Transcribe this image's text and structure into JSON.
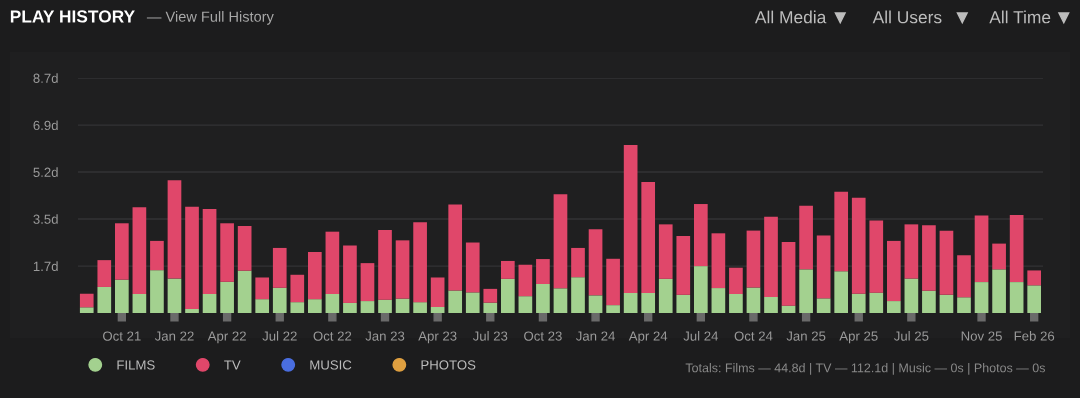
{
  "chart_data": {
    "type": "bar",
    "stacked": true,
    "title": "PLAY HISTORY",
    "subtitle": "— View Full History",
    "annotations": [
      "All Media",
      "All Users",
      "All Time",
      "Totals: Films — 44.8d | TV — 112.1d | Music — 0s | Photos — 0s"
    ],
    "categories": [
      null,
      null,
      "Oct 21",
      null,
      null,
      "Jan 22",
      null,
      null,
      "Apr 22",
      null,
      null,
      "Jul 22",
      null,
      null,
      "Oct 22",
      null,
      null,
      "Jan 23",
      null,
      null,
      "Apr 23",
      null,
      null,
      "Jul 23",
      null,
      null,
      "Oct 23",
      null,
      null,
      "Jan 24",
      null,
      null,
      "Apr 24",
      null,
      null,
      "Jul 24",
      null,
      null,
      "Oct 24",
      null,
      null,
      "Jan 25",
      null,
      null,
      "Apr 25",
      null,
      null,
      "Jul 25",
      null,
      null,
      null,
      "Nov 25",
      null,
      null,
      "Feb 26"
    ],
    "series": [
      {
        "name": "FILMS",
        "color": "#a3d18f",
        "values": [
          0.21,
          0.96,
          1.23,
          0.7,
          1.58,
          1.27,
          0.15,
          0.7,
          1.15,
          1.56,
          0.51,
          0.93,
          0.4,
          0.51,
          0.7,
          0.37,
          0.44,
          0.49,
          0.53,
          0.4,
          0.22,
          0.83,
          0.76,
          0.38,
          1.26,
          0.62,
          1.07,
          0.91,
          1.32,
          0.65,
          0.29,
          0.74,
          0.74,
          1.26,
          0.67,
          1.73,
          0.92,
          0.7,
          0.94,
          0.59,
          0.27,
          1.61,
          0.54,
          1.54,
          0.71,
          0.75,
          0.44,
          1.27,
          0.82,
          0.67,
          0.58,
          1.14,
          1.61,
          1.14,
          1.02
        ]
      },
      {
        "name": "TV",
        "color": "#e0476a",
        "values": [
          0.5,
          0.99,
          2.08,
          3.2,
          1.08,
          3.63,
          3.77,
          3.14,
          2.16,
          1.65,
          0.8,
          1.47,
          1.01,
          1.74,
          2.3,
          2.12,
          1.4,
          2.57,
          2.15,
          2.95,
          1.09,
          3.17,
          1.84,
          0.51,
          0.66,
          1.16,
          0.92,
          3.47,
          1.08,
          2.44,
          1.71,
          5.46,
          4.09,
          2.01,
          2.17,
          2.29,
          2.02,
          0.97,
          2.1,
          2.96,
          2.35,
          2.35,
          2.32,
          2.93,
          3.54,
          2.66,
          2.22,
          2.0,
          2.42,
          2.36,
          1.55,
          2.46,
          0.95,
          2.48,
          0.55
        ]
      },
      {
        "name": "MUSIC",
        "color": "#4a6ee0",
        "values": [
          0,
          0,
          0,
          0,
          0,
          0,
          0,
          0,
          0,
          0,
          0,
          0,
          0,
          0,
          0,
          0,
          0,
          0,
          0,
          0,
          0,
          0,
          0,
          0,
          0,
          0,
          0,
          0,
          0,
          0,
          0,
          0,
          0,
          0,
          0,
          0,
          0,
          0,
          0,
          0,
          0,
          0,
          0,
          0,
          0,
          0,
          0,
          0,
          0,
          0,
          0,
          0,
          0,
          0,
          0
        ]
      },
      {
        "name": "PHOTOS",
        "color": "#e0a040",
        "values": [
          0,
          0,
          0,
          0,
          0,
          0,
          0,
          0,
          0,
          0,
          0,
          0,
          0,
          0,
          0,
          0,
          0,
          0,
          0,
          0,
          0,
          0,
          0,
          0,
          0,
          0,
          0,
          0,
          0,
          0,
          0,
          0,
          0,
          0,
          0,
          0,
          0,
          0,
          0,
          0,
          0,
          0,
          0,
          0,
          0,
          0,
          0,
          0,
          0,
          0,
          0,
          0,
          0,
          0,
          0
        ]
      }
    ],
    "ylim": [
      0,
      8.67
    ],
    "yticks": [
      {
        "value": 1.73,
        "label": "1.7d"
      },
      {
        "value": 3.47,
        "label": "3.5d"
      },
      {
        "value": 5.2,
        "label": "5.2d"
      },
      {
        "value": 6.93,
        "label": "6.9d"
      },
      {
        "value": 8.67,
        "label": "8.7d"
      }
    ],
    "grid": "y",
    "legend": "bottom left"
  }
}
